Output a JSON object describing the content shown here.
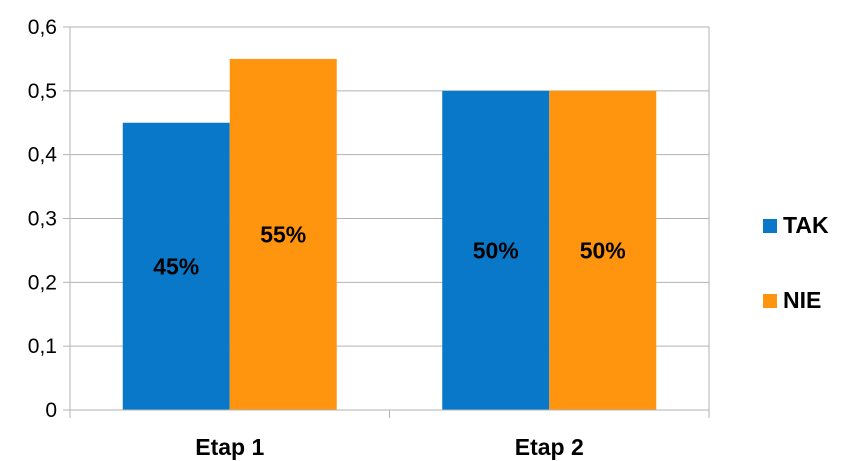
{
  "chart_data": {
    "type": "bar",
    "categories": [
      "Etap 1",
      "Etap 2"
    ],
    "series": [
      {
        "name": "TAK",
        "color": "#0a78c8",
        "values": [
          0.45,
          0.5
        ],
        "labels": [
          "45%",
          "50%"
        ]
      },
      {
        "name": "NIE",
        "color": "#ff950e",
        "values": [
          0.55,
          0.5
        ],
        "labels": [
          "55%",
          "50%"
        ]
      }
    ],
    "y_ticks": [
      "0",
      "0,1",
      "0,2",
      "0,3",
      "0,4",
      "0,5",
      "0,6"
    ],
    "ylim": [
      0,
      0.6
    ],
    "grid": true,
    "legend_position": "right"
  }
}
